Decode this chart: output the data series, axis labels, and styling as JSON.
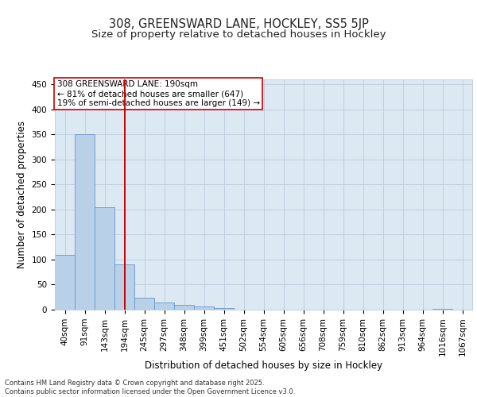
{
  "title1": "308, GREENSWARD LANE, HOCKLEY, SS5 5JP",
  "title2": "Size of property relative to detached houses in Hockley",
  "xlabel": "Distribution of detached houses by size in Hockley",
  "ylabel": "Number of detached properties",
  "bar_values": [
    110,
    350,
    204,
    90,
    24,
    14,
    9,
    7,
    3,
    0,
    0,
    0,
    0,
    0,
    0,
    0,
    0,
    0,
    0,
    2,
    0
  ],
  "bin_labels": [
    "40sqm",
    "91sqm",
    "143sqm",
    "194sqm",
    "245sqm",
    "297sqm",
    "348sqm",
    "399sqm",
    "451sqm",
    "502sqm",
    "554sqm",
    "605sqm",
    "656sqm",
    "708sqm",
    "759sqm",
    "810sqm",
    "862sqm",
    "913sqm",
    "964sqm",
    "1016sqm",
    "1067sqm"
  ],
  "bar_color": "#b8d0e8",
  "bar_edge_color": "#6699cc",
  "grid_color": "#c0d0e0",
  "bg_color": "#dce8f2",
  "vline_x": 3,
  "vline_color": "#cc0000",
  "annotation_text": "308 GREENSWARD LANE: 190sqm\n← 81% of detached houses are smaller (647)\n19% of semi-detached houses are larger (149) →",
  "annotation_box_facecolor": "#ffffff",
  "annotation_box_edge": "#cc0000",
  "ylim": [
    0,
    460
  ],
  "yticks": [
    0,
    50,
    100,
    150,
    200,
    250,
    300,
    350,
    400,
    450
  ],
  "footer": "Contains HM Land Registry data © Crown copyright and database right 2025.\nContains public sector information licensed under the Open Government Licence v3.0.",
  "title_fontsize": 10.5,
  "subtitle_fontsize": 9.5,
  "ylabel_fontsize": 8.5,
  "xlabel_fontsize": 8.5,
  "tick_fontsize": 7.5,
  "annot_fontsize": 7.5,
  "footer_fontsize": 6.0
}
